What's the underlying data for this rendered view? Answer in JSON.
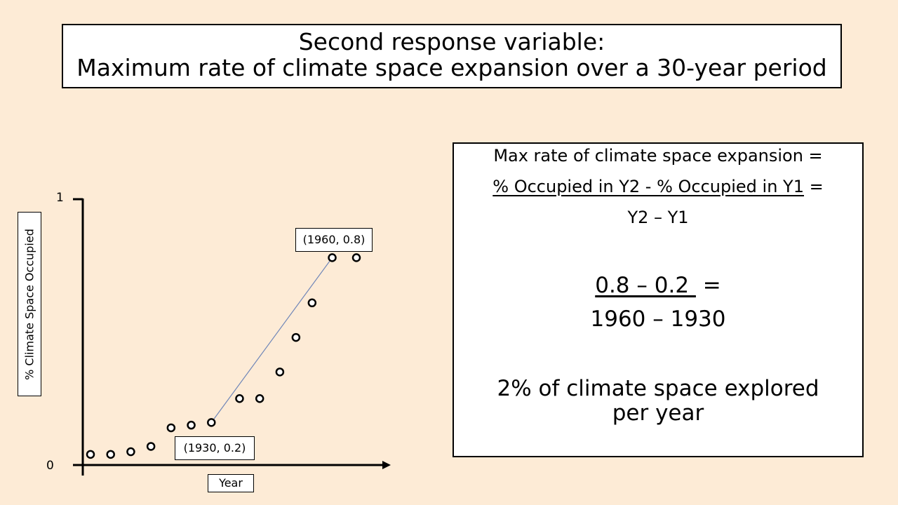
{
  "title": {
    "line1": "Second response variable:",
    "line2": "Maximum rate of climate space expansion over a 30-year period"
  },
  "formula": {
    "line1": "Max rate of climate space expansion =",
    "numerator_words": "% Occupied in Y2 - % Occupied in Y1",
    "eq_sign": "=",
    "denominator_words": "Y2 – Y1",
    "numerator_values": "0.8 – 0.2 ",
    "denominator_values": "1960 – 1930",
    "result": "2% of climate space explored per year"
  },
  "chart_data": {
    "type": "scatter",
    "xlabel": "Year",
    "ylabel": "% Climate Space Occupied",
    "y_tick_labels": [
      "0",
      "1"
    ],
    "ylim": [
      0,
      1
    ],
    "x": [
      1900,
      1905,
      1910,
      1915,
      1920,
      1925,
      1930,
      1937,
      1942,
      1947,
      1951,
      1955,
      1960,
      1966
    ],
    "y": [
      0.04,
      0.04,
      0.05,
      0.07,
      0.14,
      0.15,
      0.16,
      0.25,
      0.25,
      0.35,
      0.48,
      0.61,
      0.78,
      0.78
    ],
    "trend_line": {
      "from": [
        1930,
        0.16
      ],
      "to": [
        1960,
        0.78
      ]
    },
    "annotations": [
      {
        "text": "(1930, 0.2)",
        "x": 1930,
        "y": 0.2
      },
      {
        "text": "(1960, 0.8)",
        "x": 1960,
        "y": 0.8
      }
    ]
  }
}
